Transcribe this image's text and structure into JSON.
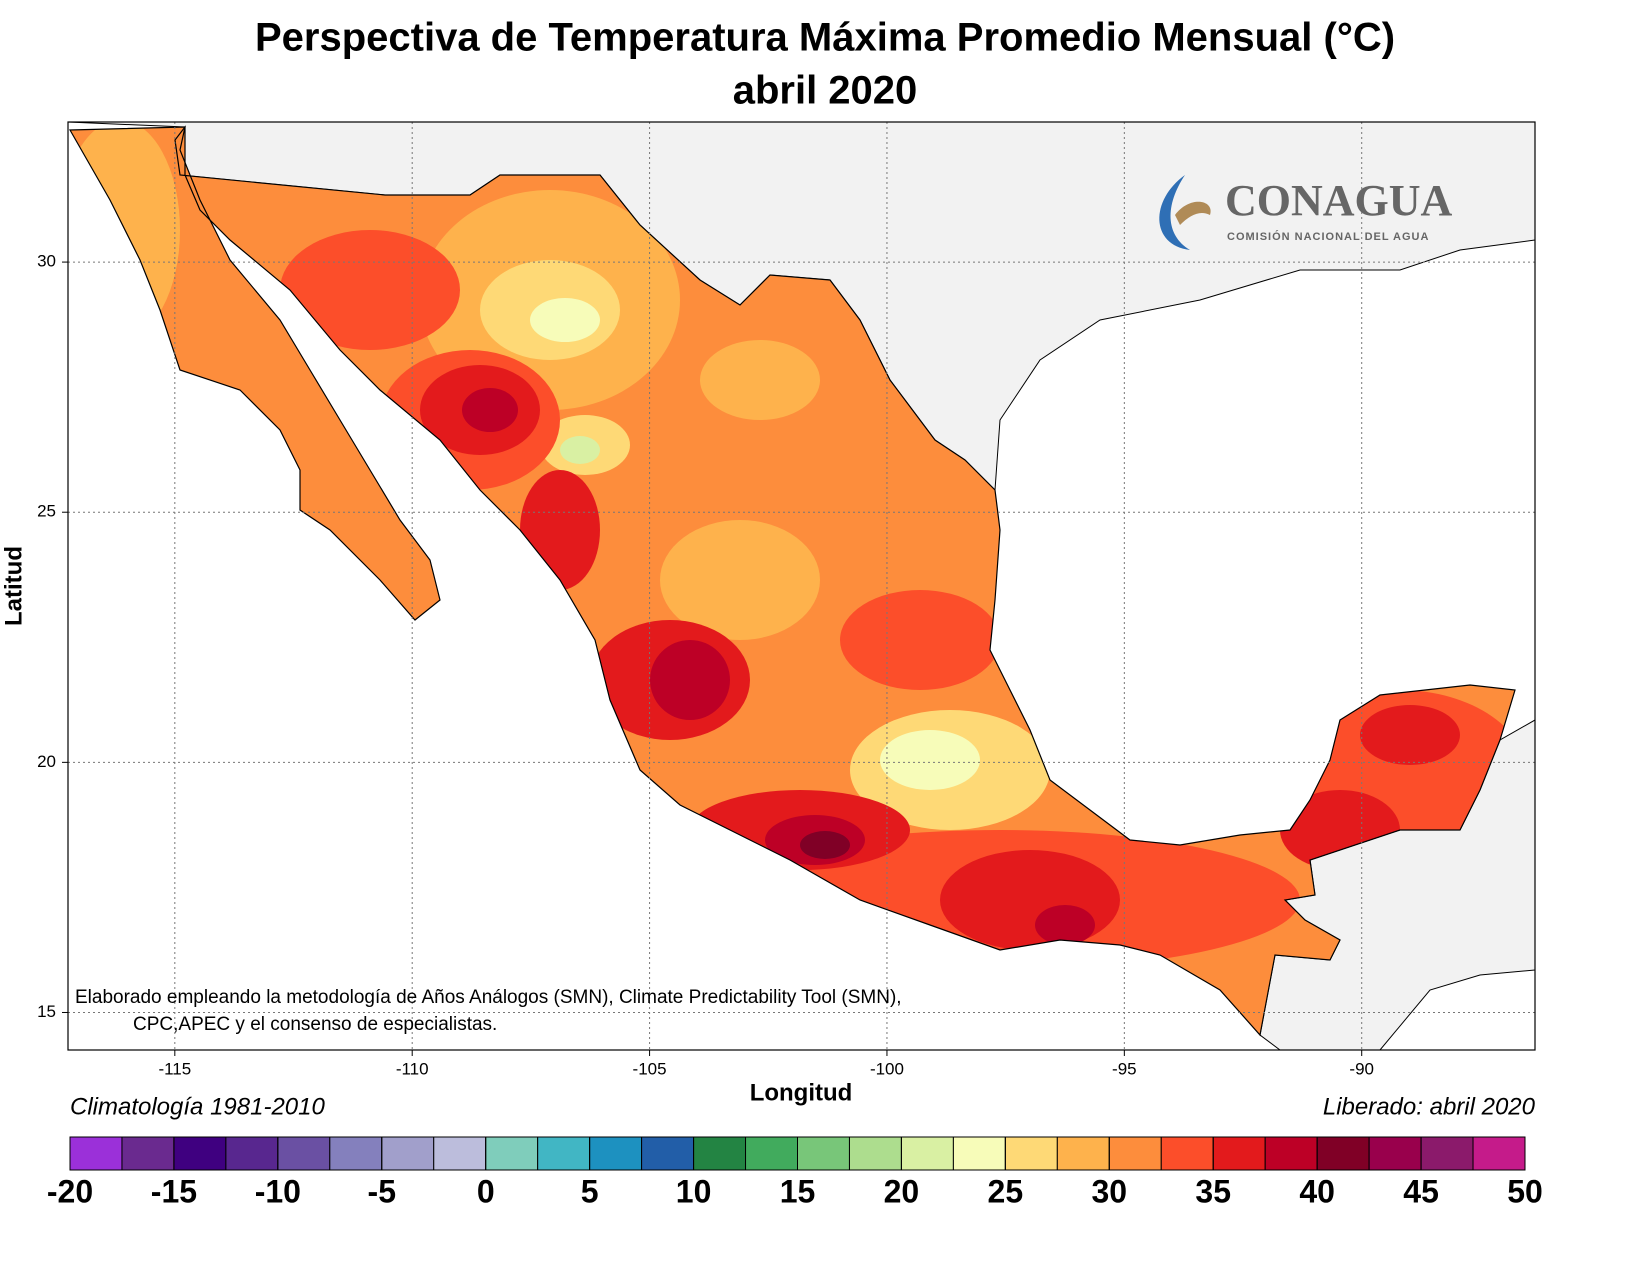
{
  "title": [
    "Perspectiva de Temperatura Máxima Promedio Mensual (°C)",
    "abril 2020"
  ],
  "map": {
    "xlabel": "Longitud",
    "ylabel": "Latitud",
    "xlim": [
      -117.25,
      -86.35
    ],
    "ylim": [
      14.25,
      32.8
    ],
    "xticks": [
      -115,
      -110,
      -105,
      -100,
      -95,
      -90
    ],
    "yticks": [
      15,
      20,
      25,
      30
    ],
    "grid": true
  },
  "note": [
    "Elaborado empleando la metodología de Años Análogos (SMN), Climate Predictability Tool (SMN),",
    "CPC,APEC y el consenso de especialistas."
  ],
  "climatology": "Climatología 1981-2010",
  "released": "Liberado: abril 2020",
  "logo": {
    "name": "CONAGUA",
    "subtitle": "COMISIÓN NACIONAL DEL AGUA"
  },
  "colorbar": {
    "range": [
      -20,
      50
    ],
    "ticks": [
      -20,
      -15,
      -10,
      -5,
      0,
      5,
      10,
      15,
      20,
      25,
      30,
      35,
      40,
      45,
      50
    ],
    "colors": [
      "#9b30d9",
      "#6a2a8f",
      "#3f0080",
      "#58278f",
      "#6a50a3",
      "#8480bd",
      "#a19fcb",
      "#bcbddc",
      "#7fcdbb",
      "#41b6c4",
      "#1d91c0",
      "#225ea8",
      "#238443",
      "#41ab5d",
      "#78c679",
      "#addd8e",
      "#d9f0a3",
      "#f7fcb9",
      "#fed976",
      "#feb24c",
      "#fd8d3c",
      "#fc4e2a",
      "#e31a1c",
      "#bd0026",
      "#800026",
      "#99004c",
      "#8b1a6b",
      "#c51b8a"
    ]
  }
}
